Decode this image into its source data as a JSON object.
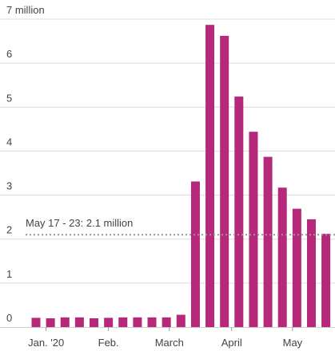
{
  "chart_data": {
    "type": "bar",
    "title": "",
    "xlabel": "",
    "ylabel": "",
    "ylim": [
      0,
      7
    ],
    "y_ticks": [
      0,
      1,
      2,
      3,
      4,
      5,
      6,
      7
    ],
    "y_top_label": "7 million",
    "grid": true,
    "bar_color": "#b5287a",
    "values": [
      0.21,
      0.2,
      0.22,
      0.22,
      0.2,
      0.21,
      0.22,
      0.22,
      0.22,
      0.22,
      0.28,
      3.31,
      6.87,
      6.62,
      5.24,
      4.44,
      3.87,
      3.17,
      2.69,
      2.45,
      2.12
    ],
    "x_labels": [
      {
        "label": "Jan. '20",
        "index": 0.7
      },
      {
        "label": "Feb.",
        "index": 5.0
      },
      {
        "label": "March",
        "index": 9.2
      },
      {
        "label": "April",
        "index": 13.5
      },
      {
        "label": "May",
        "index": 17.7
      }
    ],
    "reference_line": {
      "value": 2.1,
      "label": "May 17 - 23: 2.1 million"
    }
  }
}
